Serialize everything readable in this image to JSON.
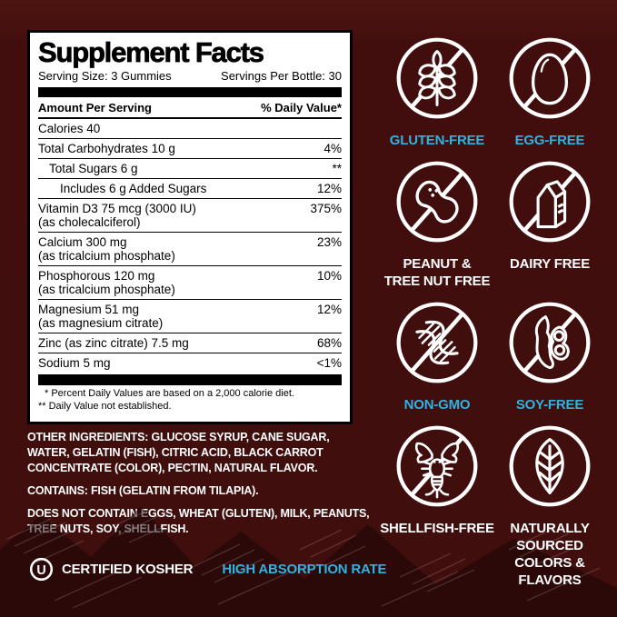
{
  "colors": {
    "background": "#400E0D",
    "accent_cyan": "#2EB3E2",
    "panel_bg": "#FFFFFF",
    "text_dark": "#000000",
    "text_light": "#FFFFFF"
  },
  "panel": {
    "title": "Supplement Facts",
    "serving_size": "Serving Size: 3 Gummies",
    "servings_per_bottle": "Servings Per Bottle: 30",
    "amount_header": "Amount Per Serving",
    "dv_header": "% Daily Value*",
    "rows": [
      {
        "name": "Calories 40",
        "sub": "",
        "value": "",
        "indent": 0
      },
      {
        "name": "Total Carbohydrates 10 g",
        "sub": "",
        "value": "4%",
        "indent": 0
      },
      {
        "name": "Total Sugars 6 g",
        "sub": "",
        "value": "**",
        "indent": 1
      },
      {
        "name": "Includes 6 g Added Sugars",
        "sub": "",
        "value": "12%",
        "indent": 2
      },
      {
        "name": "Vitamin D3 75 mcg (3000 IU)",
        "sub": "(as cholecalciferol)",
        "value": "375%",
        "indent": 0
      },
      {
        "name": "Calcium 300 mg",
        "sub": "(as tricalcium phosphate)",
        "value": "23%",
        "indent": 0
      },
      {
        "name": "Phosphorous 120 mg",
        "sub": "(as tricalcium phosphate)",
        "value": "10%",
        "indent": 0
      },
      {
        "name": "Magnesium 51 mg",
        "sub": "(as magnesium citrate)",
        "value": "12%",
        "indent": 0
      },
      {
        "name": "Zinc (as zinc citrate) 7.5 mg",
        "sub": "",
        "value": "68%",
        "indent": 0
      },
      {
        "name": "Sodium 5 mg",
        "sub": "",
        "value": "<1%",
        "indent": 0
      }
    ],
    "footnote1": "* Percent Daily Values are based on a 2,000 calorie diet.",
    "footnote2": "** Daily Value not established."
  },
  "ingredients": {
    "other": "OTHER INGREDIENTS: GLUCOSE SYRUP, CANE SUGAR, WATER, GELATIN (FISH), CITRIC ACID, BLACK CARROT CONCENTRATE (COLOR), PECTIN, NATURAL FLAVOR.",
    "contains": "CONTAINS: FISH (GELATIN FROM TILAPIA).",
    "does_not_contain": "DOES NOT CONTAIN EGGS, WHEAT (GLUTEN), MILK, PEANUTS, TREE NUTS, SOY, SHELLFISH."
  },
  "certifications": {
    "kosher_symbol": "U",
    "kosher_label": "CERTIFIED KOSHER",
    "absorption_label": "HIGH ABSORPTION RATE"
  },
  "badges": [
    {
      "name": "gluten-free",
      "icon": "wheat-icon",
      "lines": [
        "GLUTEN-FREE"
      ],
      "label_color": "cyan",
      "crossed": true
    },
    {
      "name": "egg-free",
      "icon": "egg-icon",
      "lines": [
        "EGG-FREE"
      ],
      "label_color": "cyan",
      "crossed": true
    },
    {
      "name": "peanut-tree-nut-free",
      "icon": "peanut-icon",
      "lines": [
        "PEANUT &",
        "TREE NUT FREE"
      ],
      "label_color": "white",
      "crossed": true
    },
    {
      "name": "dairy-free",
      "icon": "milk-carton-icon",
      "lines": [
        "DAIRY FREE"
      ],
      "label_color": "white",
      "crossed": true
    },
    {
      "name": "non-gmo",
      "icon": "dna-icon",
      "lines": [
        "NON-GMO"
      ],
      "label_color": "cyan",
      "crossed": true
    },
    {
      "name": "soy-free",
      "icon": "soybean-icon",
      "lines": [
        "SOY-FREE"
      ],
      "label_color": "cyan",
      "crossed": true
    },
    {
      "name": "shellfish-free",
      "icon": "lobster-icon",
      "lines": [
        "SHELLFISH-FREE"
      ],
      "label_color": "white",
      "crossed": true
    },
    {
      "name": "naturally-sourced",
      "icon": "leaf-icon",
      "lines": [
        "NATURALLY",
        "SOURCED",
        "COLORS &",
        "FLAVORS"
      ],
      "label_color": "white",
      "crossed": false
    }
  ]
}
